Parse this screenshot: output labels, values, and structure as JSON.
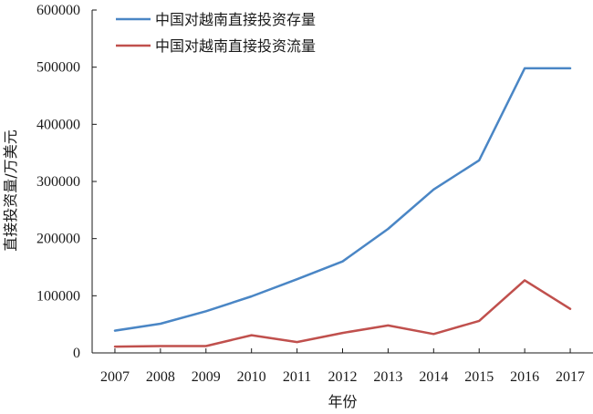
{
  "chart_data": {
    "type": "line",
    "title": "",
    "xlabel": "年份",
    "ylabel": "直接投资量/万美元",
    "categories": [
      "2007",
      "2008",
      "2009",
      "2010",
      "2011",
      "2012",
      "2013",
      "2014",
      "2015",
      "2016",
      "2017"
    ],
    "ylim": [
      0,
      600000
    ],
    "yticks": [
      "0",
      "100000",
      "200000",
      "300000",
      "400000",
      "500000",
      "600000"
    ],
    "grid": false,
    "legend_position": "top-left",
    "series": [
      {
        "name": "中国对越南直接投资存量",
        "color": "#4a86c5",
        "values": [
          39000,
          51000,
          73000,
          99000,
          129000,
          160000,
          217000,
          286000,
          337000,
          498000,
          498000
        ]
      },
      {
        "name": "中国对越南直接投资流量",
        "color": "#c0504d",
        "values": [
          11000,
          12000,
          12000,
          31000,
          19000,
          35000,
          48000,
          33000,
          56000,
          127000,
          77000
        ]
      }
    ]
  }
}
